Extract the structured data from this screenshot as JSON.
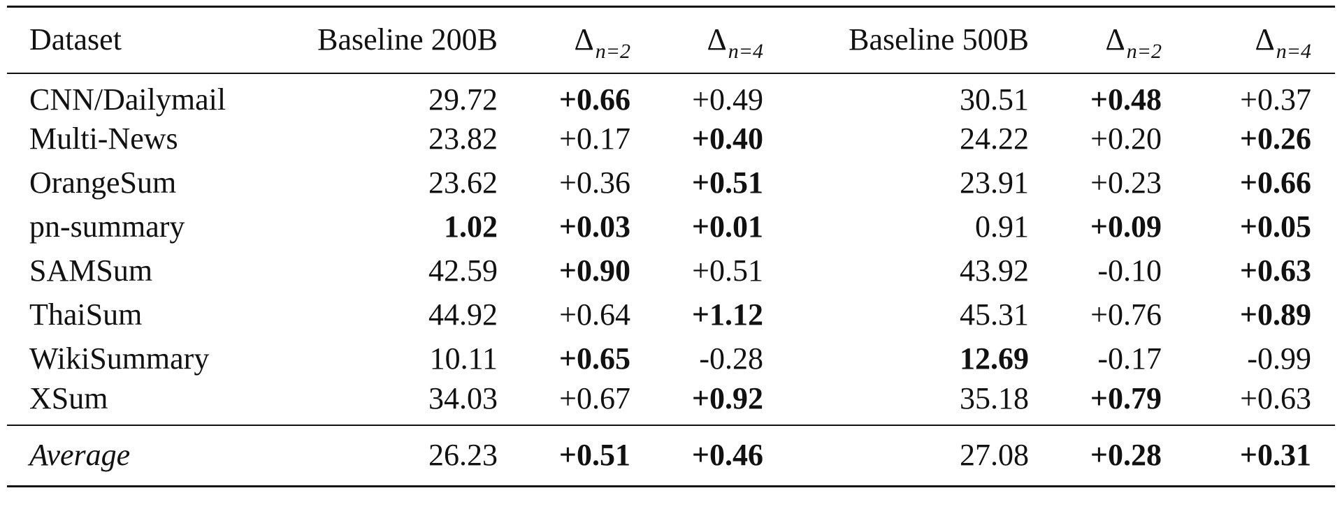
{
  "table": {
    "headers": [
      {
        "label": "Dataset"
      },
      {
        "label": "Baseline 200B"
      },
      {
        "symbol": "Δ",
        "sub": "n=2"
      },
      {
        "symbol": "Δ",
        "sub": "n=4"
      },
      {
        "label": "Baseline 500B"
      },
      {
        "symbol": "Δ",
        "sub": "n=2"
      },
      {
        "symbol": "Δ",
        "sub": "n=4"
      }
    ],
    "rows": [
      {
        "dataset": "CNN/Dailymail",
        "b200": "29.72",
        "d200_2": "+0.66",
        "d200_4": "+0.49",
        "b500": "30.51",
        "d500_2": "+0.48",
        "d500_4": "+0.37"
      },
      {
        "dataset": "Multi-News",
        "b200": "23.82",
        "d200_2": "+0.17",
        "d200_4": "+0.40",
        "b500": "24.22",
        "d500_2": "+0.20",
        "d500_4": "+0.26"
      },
      {
        "dataset": "OrangeSum",
        "b200": "23.62",
        "d200_2": "+0.36",
        "d200_4": "+0.51",
        "b500": "23.91",
        "d500_2": "+0.23",
        "d500_4": "+0.66"
      },
      {
        "dataset": "pn-summary",
        "b200": "1.02",
        "d200_2": "+0.03",
        "d200_4": "+0.01",
        "b500": "0.91",
        "d500_2": "+0.09",
        "d500_4": "+0.05"
      },
      {
        "dataset": "SAMSum",
        "b200": "42.59",
        "d200_2": "+0.90",
        "d200_4": "+0.51",
        "b500": "43.92",
        "d500_2": "-0.10",
        "d500_4": "+0.63"
      },
      {
        "dataset": "ThaiSum",
        "b200": "44.92",
        "d200_2": "+0.64",
        "d200_4": "+1.12",
        "b500": "45.31",
        "d500_2": "+0.76",
        "d500_4": "+0.89"
      },
      {
        "dataset": "WikiSummary",
        "b200": "10.11",
        "d200_2": "+0.65",
        "d200_4": "-0.28",
        "b500": "12.69",
        "d500_2": "-0.17",
        "d500_4": "-0.99"
      },
      {
        "dataset": "XSum",
        "b200": "34.03",
        "d200_2": "+0.67",
        "d200_4": "+0.92",
        "b500": "35.18",
        "d500_2": "+0.79",
        "d500_4": "+0.63"
      }
    ],
    "average": {
      "dataset": "Average",
      "b200": "26.23",
      "d200_2": "+0.51",
      "d200_4": "+0.46",
      "b500": "27.08",
      "d500_2": "+0.28",
      "d500_4": "+0.31"
    }
  }
}
